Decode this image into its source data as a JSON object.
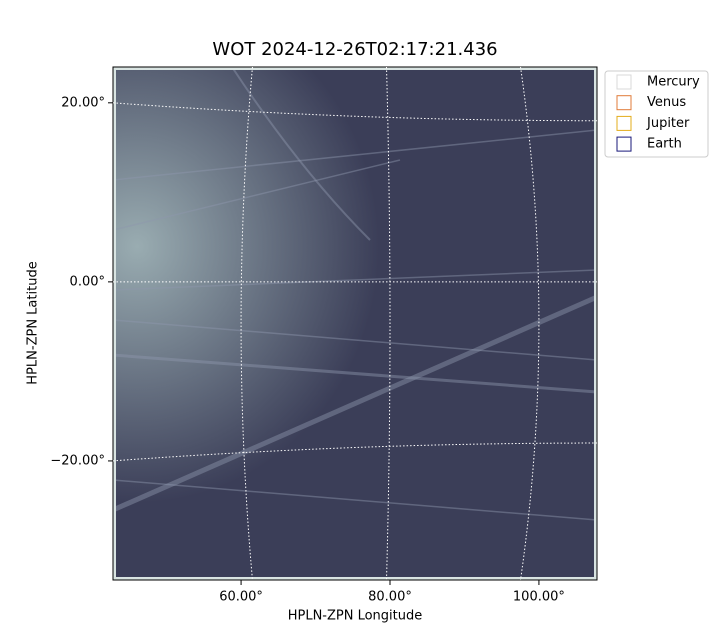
{
  "chart_data": {
    "type": "image",
    "title": "WOT 2024-12-26T02:17:21.436",
    "xlabel": "HPLN-ZPN Longitude",
    "ylabel": "HPLN-ZPN Latitude",
    "xlim": [
      42.8,
      107.8
    ],
    "ylim": [
      -33.3,
      24.0
    ],
    "xticks": [
      {
        "value": 60,
        "label": "60.00°"
      },
      {
        "value": 80,
        "label": "80.00°"
      },
      {
        "value": 100,
        "label": "100.00°"
      }
    ],
    "yticks": [
      {
        "value": -20,
        "label": "−20.00°"
      },
      {
        "value": 0,
        "label": "0.00°"
      },
      {
        "value": 20,
        "label": "20.00°"
      }
    ],
    "grid": true,
    "legend_position": "outside-upper-right",
    "series": [
      {
        "name": "Mercury",
        "color": "#d8d8d8"
      },
      {
        "name": "Venus",
        "color": "#e07b39"
      },
      {
        "name": "Jupiter",
        "color": "#e3ac1b"
      },
      {
        "name": "Earth",
        "color": "#17177a"
      }
    ]
  }
}
